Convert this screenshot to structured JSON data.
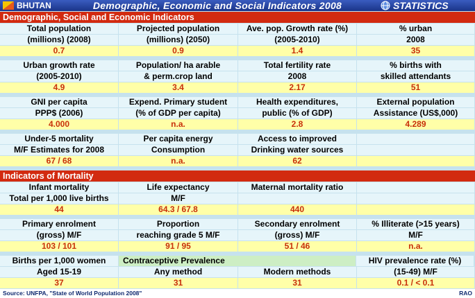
{
  "header": {
    "country": "BHUTAN",
    "title": "Demographic, Economic and Social Indicators 2008",
    "brand": "STATISTICS"
  },
  "sections": [
    {
      "title": "Demographic, Social and Economic Indicators",
      "groups": [
        {
          "cells": [
            {
              "lines": [
                "Total population",
                "(millions) (2008)"
              ],
              "value": "0.7"
            },
            {
              "lines": [
                "Projected population",
                "(millions) (2050)"
              ],
              "value": "0.9"
            },
            {
              "lines": [
                "Ave. pop. Growth rate (%)",
                "(2005-2010)"
              ],
              "value": "1.4"
            },
            {
              "lines": [
                "% urban",
                "2008"
              ],
              "value": "35"
            }
          ]
        },
        {
          "cells": [
            {
              "lines": [
                "Urban growth rate",
                "(2005-2010)"
              ],
              "value": "4.9"
            },
            {
              "lines": [
                "Population/ ha arable",
                "& perm.crop land"
              ],
              "value": "3.4"
            },
            {
              "lines": [
                "Total fertility rate",
                "2008"
              ],
              "value": "2.17"
            },
            {
              "lines": [
                "% births with",
                "skilled attendants"
              ],
              "value": "51"
            }
          ]
        },
        {
          "cells": [
            {
              "lines": [
                "GNI per capita",
                "PPP$ (2006)"
              ],
              "value": "4.000"
            },
            {
              "lines": [
                "Expend. Primary student",
                "(% of GDP per capita)"
              ],
              "value": "n.a."
            },
            {
              "lines": [
                "Health expenditures,",
                "public (% of GDP)"
              ],
              "value": "2.8"
            },
            {
              "lines": [
                "External population",
                "Assistance (US$,000)"
              ],
              "value": "4.289"
            }
          ]
        },
        {
          "cells": [
            {
              "lines": [
                "Under-5 mortality",
                "M/F Estimates for 2008"
              ],
              "value": "67 / 68"
            },
            {
              "lines": [
                "Per capita energy",
                "Consumption"
              ],
              "value": "n.a."
            },
            {
              "lines": [
                "Access to improved",
                "Drinking water sources"
              ],
              "value": "62"
            },
            null
          ]
        }
      ]
    },
    {
      "title": "Indicators of Mortality",
      "groups": [
        {
          "cells": [
            {
              "lines": [
                "Infant mortality",
                "Total per 1,000 live births"
              ],
              "value": "44"
            },
            {
              "lines": [
                "Life expectancy",
                "M/F"
              ],
              "value": "64.3 / 67.8"
            },
            {
              "lines": [
                "Maternal mortality ratio"
              ],
              "value": "440"
            },
            null
          ]
        },
        {
          "cells": [
            {
              "lines": [
                "Primary enrolment",
                "(gross) M/F"
              ],
              "value": "103 / 101"
            },
            {
              "lines": [
                "Proportion",
                "reaching grade 5 M/F"
              ],
              "value": "91 / 95"
            },
            {
              "lines": [
                "Secondary enrolment",
                "(gross) M/F"
              ],
              "value": "51 / 46"
            },
            {
              "lines": [
                "% Illiterate (>15 years)",
                "M/F"
              ],
              "value": "n.a."
            }
          ]
        },
        {
          "cells": [
            {
              "lines": [
                "Births per 1,000 women",
                "Aged 15-19"
              ],
              "value": "37"
            },
            {
              "lines": [
                "Contraceptive Prevalence",
                "Any method"
              ],
              "value": "31"
            },
            {
              "lines": [
                null,
                "Modern methods"
              ],
              "value": "31"
            },
            {
              "lines": [
                "HIV prevalence rate (%)",
                "(15-49) M/F"
              ],
              "value": "0.1 / < 0.1"
            }
          ]
        }
      ]
    }
  ],
  "footer": {
    "source": "Source: UNFPA, \"State of World Population 2008\"",
    "signature": "RAO"
  }
}
